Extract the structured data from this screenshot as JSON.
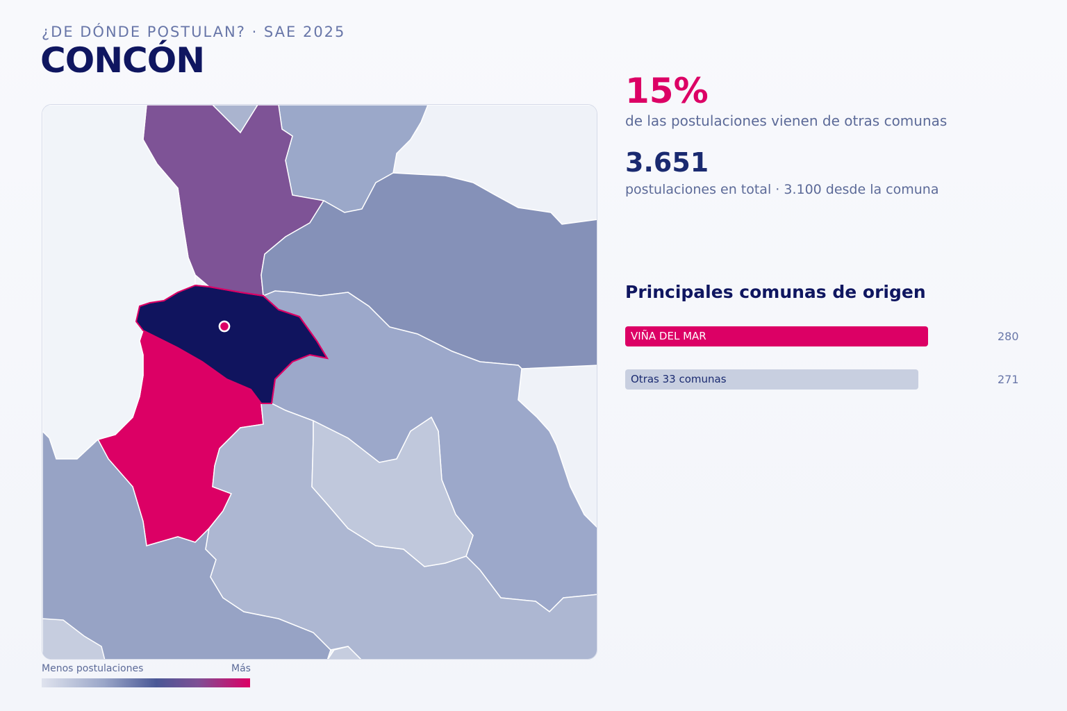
{
  "header": {
    "kicker": "¿DE DÓNDE POSTULAN? · SAE 2025",
    "title": "CONCÓN"
  },
  "stats": {
    "pct_value": "15%",
    "pct_caption": "de las postulaciones vienen de otras comunas",
    "total_value": "3.651",
    "total_caption": "postulaciones en total · 3.100 desde la comuna"
  },
  "origins": {
    "title": "Principales comunas de origen",
    "rows": [
      {
        "label": "VIÑA DEL MAR",
        "value": "280",
        "share": 0.508
      },
      {
        "label": "Otras 33 comunas",
        "value": "271",
        "share": 0.492
      }
    ]
  },
  "legend": {
    "low_label": "Menos postulaciones",
    "high_label": "Más"
  },
  "colors": {
    "highlight": "#dc0065",
    "home_commune": "#10145e",
    "other_bar": "#c8cfe0"
  }
}
